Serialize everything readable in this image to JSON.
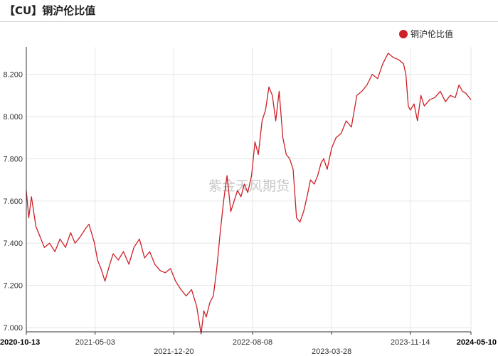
{
  "title": "【CU】铜沪伦比值",
  "watermark": "紫金天风期货",
  "chart_data": {
    "type": "line",
    "legend_position": "top-right",
    "grid": true,
    "colors": {
      "series": "#cc2128",
      "grid": "#e6e6e6",
      "axis": "#333333"
    },
    "ylim": [
      6.98,
      8.33
    ],
    "yticks": [
      7.0,
      7.2,
      7.4,
      7.6,
      7.8,
      8.0,
      8.2
    ],
    "ytick_labels": [
      "7.000",
      "7.200",
      "7.400",
      "7.600",
      "7.800",
      "8.000",
      "8.200"
    ],
    "x_range": [
      "2020-10-13",
      "2024-05-10"
    ],
    "xticks": [
      {
        "date": "2020-10-13",
        "label": "2020-10-13",
        "row": 1,
        "bold": true
      },
      {
        "date": "2021-05-03",
        "label": "2021-05-03",
        "row": 1,
        "bold": false
      },
      {
        "date": "2021-12-20",
        "label": "2021-12-20",
        "row": 2,
        "bold": false
      },
      {
        "date": "2022-08-08",
        "label": "2022-08-08",
        "row": 1,
        "bold": false
      },
      {
        "date": "2023-03-28",
        "label": "2023-03-28",
        "row": 2,
        "bold": false
      },
      {
        "date": "2023-11-14",
        "label": "2023-11-14",
        "row": 1,
        "bold": false
      },
      {
        "date": "2024-05-10",
        "label": "2024-05-10",
        "row": 1,
        "bold": true
      }
    ],
    "series": [
      {
        "name": "铜沪伦比值",
        "x": [
          "2020-10-13",
          "2020-10-20",
          "2020-10-28",
          "2020-11-10",
          "2020-11-25",
          "2020-12-05",
          "2020-12-20",
          "2021-01-05",
          "2021-01-20",
          "2021-02-05",
          "2021-02-20",
          "2021-03-05",
          "2021-03-20",
          "2021-04-05",
          "2021-04-15",
          "2021-05-01",
          "2021-05-10",
          "2021-05-20",
          "2021-06-01",
          "2021-06-15",
          "2021-06-25",
          "2021-07-10",
          "2021-07-25",
          "2021-08-10",
          "2021-08-25",
          "2021-09-10",
          "2021-09-25",
          "2021-10-10",
          "2021-10-25",
          "2021-11-10",
          "2021-11-25",
          "2021-12-10",
          "2021-12-25",
          "2022-01-10",
          "2022-01-25",
          "2022-02-10",
          "2022-02-25",
          "2022-03-10",
          "2022-03-18",
          "2022-03-25",
          "2022-04-05",
          "2022-04-15",
          "2022-04-25",
          "2022-05-05",
          "2022-05-15",
          "2022-05-25",
          "2022-06-05",
          "2022-06-15",
          "2022-06-25",
          "2022-07-05",
          "2022-07-15",
          "2022-07-25",
          "2022-08-05",
          "2022-08-15",
          "2022-08-25",
          "2022-09-05",
          "2022-09-15",
          "2022-09-25",
          "2022-10-05",
          "2022-10-15",
          "2022-10-25",
          "2022-11-05",
          "2022-11-15",
          "2022-11-25",
          "2022-12-05",
          "2022-12-15",
          "2022-12-25",
          "2023-01-05",
          "2023-01-15",
          "2023-01-25",
          "2023-02-05",
          "2023-02-15",
          "2023-02-25",
          "2023-03-05",
          "2023-03-15",
          "2023-03-28",
          "2023-04-10",
          "2023-04-25",
          "2023-05-10",
          "2023-05-25",
          "2023-06-10",
          "2023-06-25",
          "2023-07-10",
          "2023-07-25",
          "2023-08-10",
          "2023-08-25",
          "2023-09-10",
          "2023-09-25",
          "2023-10-10",
          "2023-10-25",
          "2023-11-01",
          "2023-11-08",
          "2023-11-14",
          "2023-11-25",
          "2023-12-05",
          "2023-12-15",
          "2023-12-25",
          "2024-01-10",
          "2024-01-25",
          "2024-02-10",
          "2024-02-25",
          "2024-03-10",
          "2024-03-25",
          "2024-04-05",
          "2024-04-15",
          "2024-04-25",
          "2024-05-10"
        ],
        "y": [
          7.65,
          7.52,
          7.62,
          7.48,
          7.42,
          7.38,
          7.4,
          7.36,
          7.42,
          7.38,
          7.45,
          7.4,
          7.43,
          7.47,
          7.49,
          7.4,
          7.32,
          7.28,
          7.22,
          7.3,
          7.35,
          7.32,
          7.36,
          7.3,
          7.38,
          7.42,
          7.33,
          7.36,
          7.3,
          7.27,
          7.26,
          7.28,
          7.22,
          7.18,
          7.15,
          7.18,
          7.1,
          6.97,
          7.08,
          7.05,
          7.12,
          7.15,
          7.28,
          7.45,
          7.6,
          7.72,
          7.55,
          7.6,
          7.65,
          7.62,
          7.68,
          7.64,
          7.72,
          7.88,
          7.82,
          7.98,
          8.03,
          8.14,
          8.1,
          7.98,
          8.12,
          7.9,
          7.82,
          7.8,
          7.75,
          7.52,
          7.5,
          7.55,
          7.62,
          7.7,
          7.68,
          7.72,
          7.78,
          7.8,
          7.75,
          7.85,
          7.9,
          7.92,
          7.98,
          7.95,
          8.1,
          8.12,
          8.15,
          8.2,
          8.18,
          8.25,
          8.3,
          8.28,
          8.27,
          8.25,
          8.2,
          8.05,
          8.03,
          8.06,
          7.98,
          8.1,
          8.05,
          8.08,
          8.09,
          8.12,
          8.07,
          8.1,
          8.09,
          8.15,
          8.12,
          8.11,
          8.08
        ]
      }
    ]
  }
}
